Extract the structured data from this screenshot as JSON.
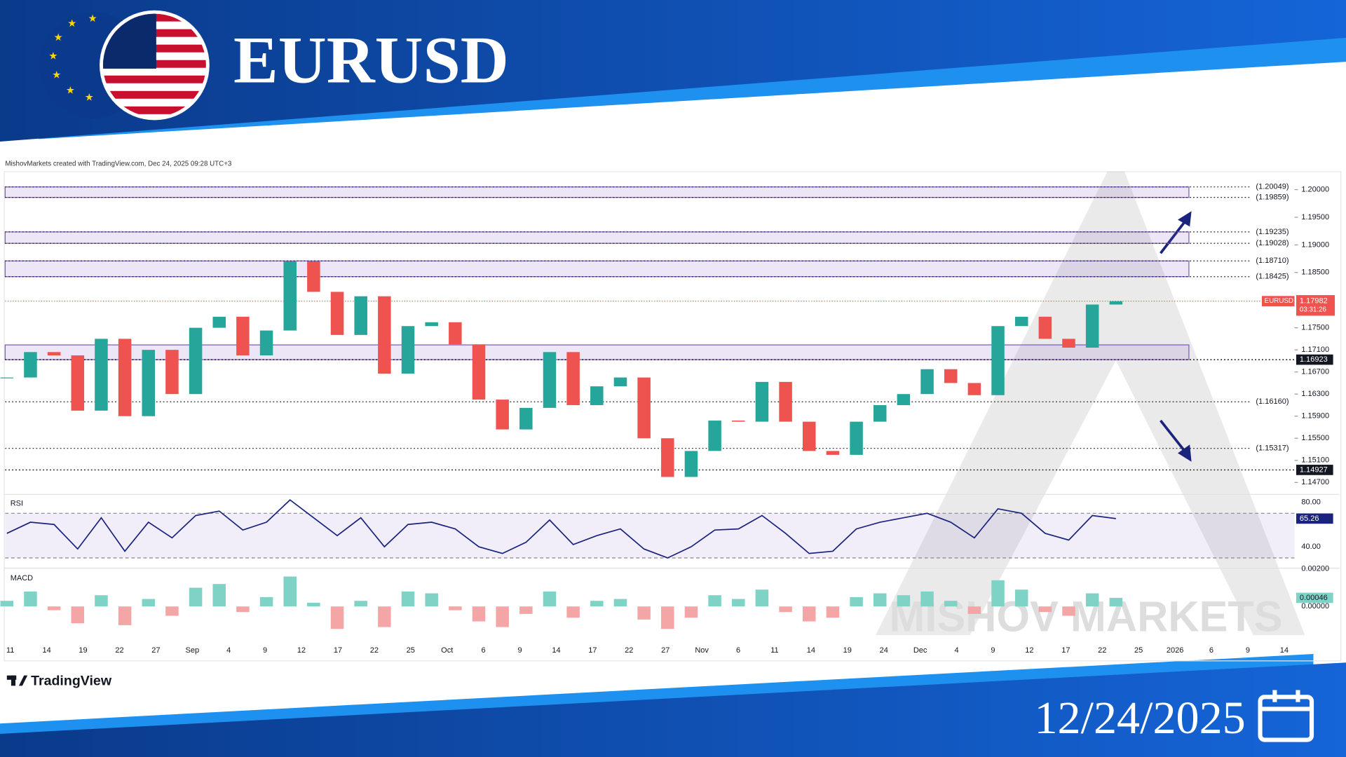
{
  "header": {
    "title": "EURUSD",
    "date": "12/24/2025"
  },
  "credit": "MishovMarkets created with TradingView.com, Dec 24, 2025 09:28 UTC+3",
  "brand": "TradingView",
  "watermark": "MISHOV MARKETS",
  "chart_data": {
    "type": "candlestick",
    "symbol": "EURUSD",
    "up_color": "#26a69a",
    "down_color": "#ef5350",
    "close": [
      1.166,
      1.1706,
      1.17,
      1.16,
      1.173,
      1.159,
      1.171,
      1.163,
      1.175,
      1.177,
      1.17,
      1.1745,
      1.187,
      1.1815,
      1.1737,
      1.1807,
      1.1667,
      1.1753,
      1.176,
      1.172,
      1.162,
      1.1566,
      1.1605,
      1.1706,
      1.161,
      1.1644,
      1.166,
      1.155,
      1.148,
      1.1527,
      1.1582,
      1.158,
      1.1652,
      1.158,
      1.1527,
      1.152,
      1.158,
      1.161,
      1.163,
      1.1675,
      1.165,
      1.1628,
      1.1753,
      1.177,
      1.173,
      1.1714,
      1.1792,
      1.1798
    ],
    "ylim": [
      1.145,
      1.2031
    ],
    "yticks": [
      {
        "value": 1.2,
        "label": "1.20000"
      },
      {
        "value": 1.195,
        "label": "1.19500"
      },
      {
        "value": 1.19,
        "label": "1.19000"
      },
      {
        "value": 1.185,
        "label": "1.18500"
      },
      {
        "value": 1.175,
        "label": "1.17500"
      },
      {
        "value": 1.171,
        "label": "1.17100"
      },
      {
        "value": 1.167,
        "label": "1.16700"
      },
      {
        "value": 1.163,
        "label": "1.16300"
      },
      {
        "value": 1.159,
        "label": "1.15900"
      },
      {
        "value": 1.155,
        "label": "1.15500"
      },
      {
        "value": 1.151,
        "label": "1.15100"
      },
      {
        "value": 1.147,
        "label": "1.14700"
      }
    ],
    "zones": [
      [
        1.20049,
        1.19859
      ],
      [
        1.19235,
        1.19028
      ],
      [
        1.1871,
        1.18425
      ],
      [
        1.1719,
        1.16923
      ]
    ],
    "levels": [
      {
        "value": 1.20049,
        "label": "(1.20049)"
      },
      {
        "value": 1.19859,
        "label": "(1.19859)"
      },
      {
        "value": 1.19235,
        "label": "(1.19235)"
      },
      {
        "value": 1.19028,
        "label": "(1.19028)"
      },
      {
        "value": 1.1871,
        "label": "(1.18710)"
      },
      {
        "value": 1.18425,
        "label": "(1.18425)"
      },
      {
        "value": 1.1616,
        "label": "(1.16160)"
      },
      {
        "value": 1.15317,
        "label": "(1.15317)"
      }
    ],
    "marked_levels": [
      1.16923,
      1.14927
    ],
    "last_price": 1.17982,
    "countdown": "03:31:26",
    "time_labels": [
      "11",
      "14",
      "19",
      "22",
      "27",
      "Sep",
      "4",
      "9",
      "12",
      "17",
      "22",
      "25",
      "Oct",
      "6",
      "9",
      "14",
      "17",
      "22",
      "27",
      "Nov",
      "6",
      "11",
      "14",
      "19",
      "24",
      "Dec",
      "4",
      "9",
      "12",
      "17",
      "22",
      "25",
      "2026",
      "6",
      "9",
      "14"
    ],
    "rsi": {
      "title": "RSI",
      "color": "#1a237e",
      "values": [
        52,
        62,
        60,
        38,
        66,
        36,
        62,
        48,
        68,
        72,
        55,
        62,
        82,
        66,
        50,
        66,
        40,
        60,
        62,
        56,
        40,
        34,
        44,
        64,
        42,
        50,
        56,
        38,
        30,
        40,
        55,
        56,
        68,
        52,
        34,
        36,
        56,
        62,
        66,
        70,
        62,
        48,
        74,
        70,
        52,
        46,
        68,
        65.26
      ],
      "ylim": [
        20.8,
        86.2
      ],
      "yticks": [
        {
          "value": 80,
          "label": "80.00"
        },
        {
          "value": 40,
          "label": "40.00"
        }
      ],
      "bands": [
        70,
        30
      ]
    },
    "macd": {
      "title": "MACD",
      "pos_color": "#7fd3c6",
      "neg_color": "#f4a6a6",
      "values": [
        0.0003,
        0.0008,
        -0.0002,
        -0.0009,
        0.0006,
        -0.001,
        0.0004,
        -0.0005,
        0.001,
        0.0012,
        -0.0003,
        0.0005,
        0.0016,
        0.0002,
        -0.0012,
        0.0003,
        -0.0011,
        0.0008,
        0.0007,
        -0.0002,
        -0.0008,
        -0.0011,
        -0.0004,
        0.0008,
        -0.0006,
        0.0003,
        0.0004,
        -0.0007,
        -0.0012,
        -0.0006,
        0.0006,
        0.0004,
        0.0009,
        -0.0003,
        -0.0008,
        -0.0006,
        0.0005,
        0.0007,
        0.0006,
        0.0008,
        0.0003,
        -0.0004,
        0.0014,
        0.0009,
        -0.0003,
        -0.0005,
        0.0007,
        0.00046
      ],
      "ylim": [
        -0.0019,
        0.002
      ],
      "yticks": [
        {
          "value": 0.002,
          "label": "0.00200"
        },
        {
          "value": 0,
          "label": "0.00000"
        }
      ],
      "last_label": "0.00046"
    }
  }
}
